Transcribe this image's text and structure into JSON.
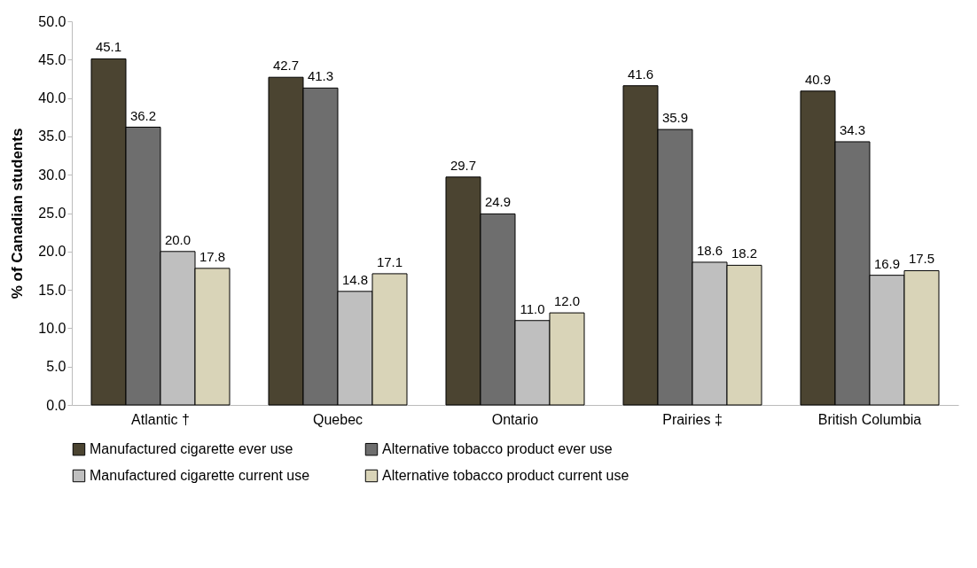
{
  "chart_data": {
    "type": "bar",
    "ylabel": "% of Canadian students",
    "categories": [
      "Atlantic †",
      "Quebec",
      "Ontario",
      "Prairies ‡",
      "British Columbia"
    ],
    "series": [
      {
        "name": "Manufactured cigarette ever use",
        "color": "#4b4431",
        "values": [
          45.1,
          42.7,
          29.7,
          41.6,
          40.9
        ],
        "value_labels": [
          "45.1",
          "42.7",
          "29.7",
          "41.6",
          "40.9"
        ]
      },
      {
        "name": "Alternative tobacco product ever use",
        "color": "#6e6e6e",
        "values": [
          36.2,
          41.3,
          24.9,
          35.9,
          34.3
        ],
        "value_labels": [
          "36.2",
          "41.3",
          "24.9",
          "35.9",
          "34.3"
        ]
      },
      {
        "name": "Manufactured cigarette current use",
        "color": "#bfbfbf",
        "values": [
          20.0,
          14.8,
          11.0,
          18.6,
          16.9
        ],
        "value_labels": [
          "20.0",
          "14.8",
          "11.0",
          "18.6",
          "16.9"
        ]
      },
      {
        "name": "Alternative tobacco product current use",
        "color": "#d9d4b8",
        "values": [
          17.8,
          17.1,
          12.0,
          18.2,
          17.5
        ],
        "value_labels": [
          "17.8",
          "17.1",
          "12.0",
          "18.2",
          "17.5"
        ]
      }
    ],
    "ylim": [
      0,
      50
    ],
    "yticks": [
      {
        "value": 0,
        "label": "0.0"
      },
      {
        "value": 5,
        "label": "5.0"
      },
      {
        "value": 10,
        "label": "10.0"
      },
      {
        "value": 15,
        "label": "15.0"
      },
      {
        "value": 20,
        "label": "20.0"
      },
      {
        "value": 25,
        "label": "25.0"
      },
      {
        "value": 30,
        "label": "30.0"
      },
      {
        "value": 35,
        "label": "35.0"
      },
      {
        "value": 40,
        "label": "40.0"
      },
      {
        "value": 45,
        "label": "45.0"
      },
      {
        "value": 50,
        "label": "50.0"
      }
    ],
    "grid": false,
    "legend": "bottom"
  }
}
